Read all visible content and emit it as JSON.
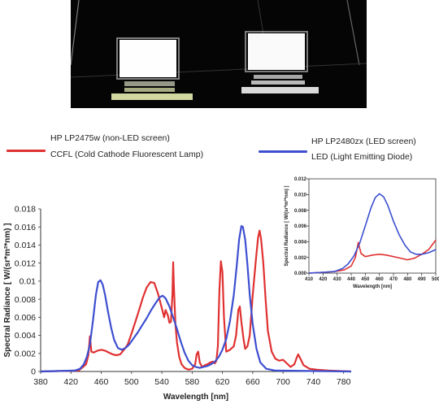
{
  "legend": {
    "ccfl": {
      "name": "HP LP2475w (non-LED screen)",
      "type": "CCFL (Cold Cathode Fluorescent Lamp)",
      "color": "#e03131"
    },
    "led": {
      "name": "HP LP2480zx (LED screen)",
      "type": "LED (Light Emitting Diode)",
      "color": "#3d4fd0"
    }
  },
  "chart_data": [
    {
      "type": "line",
      "title": "",
      "xlabel": "Wavelength [nm]",
      "ylabel": "Spectral Radiance [ W/(sr*m²*nm) ]",
      "xlim": [
        380,
        790
      ],
      "ylim": [
        0,
        0.018
      ],
      "xticks": [
        "380",
        "420",
        "460",
        "500",
        "540",
        "580",
        "620",
        "660",
        "700",
        "740",
        "780"
      ],
      "yticks": [
        "0",
        "0.002",
        "0.004",
        "0.006",
        "0.008",
        "0.01",
        "0.012",
        "0.014",
        "0.016",
        "0.018"
      ],
      "grid": false,
      "series": [
        {
          "name": "HP LP2475w (non-LED screen)",
          "color": "#e03131",
          "points": [
            [
              380,
              0
            ],
            [
              430,
              0.0001
            ],
            [
              436,
              0.0005
            ],
            [
              440,
              0.0008
            ],
            [
              443,
              0.0018
            ],
            [
              445,
              0.0039
            ],
            [
              447,
              0.0022
            ],
            [
              450,
              0.0021
            ],
            [
              455,
              0.0023
            ],
            [
              460,
              0.0024
            ],
            [
              465,
              0.0023
            ],
            [
              470,
              0.0021
            ],
            [
              475,
              0.0019
            ],
            [
              480,
              0.0018
            ],
            [
              485,
              0.0019
            ],
            [
              490,
              0.0024
            ],
            [
              495,
              0.003
            ],
            [
              500,
              0.0042
            ],
            [
              505,
              0.0055
            ],
            [
              510,
              0.0068
            ],
            [
              515,
              0.0082
            ],
            [
              520,
              0.0093
            ],
            [
              525,
              0.0099
            ],
            [
              530,
              0.0098
            ],
            [
              535,
              0.0086
            ],
            [
              540,
              0.007
            ],
            [
              543,
              0.006
            ],
            [
              545,
              0.0068
            ],
            [
              548,
              0.0062
            ],
            [
              550,
              0.0054
            ],
            [
              552,
              0.0055
            ],
            [
              554,
              0.0085
            ],
            [
              555,
              0.0121
            ],
            [
              556,
              0.0092
            ],
            [
              558,
              0.0052
            ],
            [
              560,
              0.0032
            ],
            [
              563,
              0.0016
            ],
            [
              566,
              0.0008
            ],
            [
              570,
              0.0004
            ],
            [
              575,
              0.0002
            ],
            [
              580,
              0.0003
            ],
            [
              584,
              0.0008
            ],
            [
              586,
              0.0019
            ],
            [
              588,
              0.0022
            ],
            [
              590,
              0.001
            ],
            [
              593,
              0.0005
            ],
            [
              597,
              0.0007
            ],
            [
              600,
              0.0008
            ],
            [
              604,
              0.001
            ],
            [
              607,
              0.0011
            ],
            [
              610,
              0.0009
            ],
            [
              612,
              0.0012
            ],
            [
              614,
              0.0028
            ],
            [
              616,
              0.009
            ],
            [
              618,
              0.0122
            ],
            [
              620,
              0.011
            ],
            [
              622,
              0.006
            ],
            [
              625,
              0.0022
            ],
            [
              630,
              0.0024
            ],
            [
              635,
              0.0028
            ],
            [
              638,
              0.004
            ],
            [
              641,
              0.0068
            ],
            [
              643,
              0.0072
            ],
            [
              645,
              0.0055
            ],
            [
              648,
              0.0035
            ],
            [
              650,
              0.0025
            ],
            [
              653,
              0.0028
            ],
            [
              656,
              0.004
            ],
            [
              660,
              0.0085
            ],
            [
              664,
              0.0122
            ],
            [
              667,
              0.0148
            ],
            [
              669,
              0.0156
            ],
            [
              671,
              0.0147
            ],
            [
              674,
              0.012
            ],
            [
              677,
              0.008
            ],
            [
              680,
              0.0045
            ],
            [
              685,
              0.0022
            ],
            [
              690,
              0.0014
            ],
            [
              695,
              0.0012
            ],
            [
              700,
              0.0013
            ],
            [
              705,
              0.0009
            ],
            [
              710,
              0.0005
            ],
            [
              715,
              0.0008
            ],
            [
              718,
              0.0015
            ],
            [
              720,
              0.0019
            ],
            [
              723,
              0.0014
            ],
            [
              727,
              0.0007
            ],
            [
              735,
              0.0003
            ],
            [
              745,
              0.0002
            ],
            [
              760,
              0.0001
            ],
            [
              790,
              0
            ]
          ]
        },
        {
          "name": "HP LP2480zx (LED screen)",
          "color": "#3d4fd0",
          "points": [
            [
              380,
              0
            ],
            [
              425,
              0.0001
            ],
            [
              432,
              0.0003
            ],
            [
              437,
              0.0008
            ],
            [
              441,
              0.0016
            ],
            [
              445,
              0.003
            ],
            [
              449,
              0.0056
            ],
            [
              453,
              0.0085
            ],
            [
              456,
              0.0099
            ],
            [
              459,
              0.0101
            ],
            [
              462,
              0.0096
            ],
            [
              465,
              0.0085
            ],
            [
              469,
              0.0066
            ],
            [
              473,
              0.0049
            ],
            [
              477,
              0.0035
            ],
            [
              482,
              0.0026
            ],
            [
              487,
              0.0024
            ],
            [
              492,
              0.0026
            ],
            [
              497,
              0.003
            ],
            [
              502,
              0.0036
            ],
            [
              508,
              0.0043
            ],
            [
              514,
              0.0051
            ],
            [
              520,
              0.0059
            ],
            [
              526,
              0.0068
            ],
            [
              532,
              0.0076
            ],
            [
              537,
              0.0082
            ],
            [
              541,
              0.0084
            ],
            [
              545,
              0.0081
            ],
            [
              550,
              0.0072
            ],
            [
              555,
              0.006
            ],
            [
              560,
              0.0047
            ],
            [
              565,
              0.0033
            ],
            [
              570,
              0.0021
            ],
            [
              575,
              0.0012
            ],
            [
              580,
              0.0007
            ],
            [
              585,
              0.0005
            ],
            [
              590,
              0.0004
            ],
            [
              595,
              0.0005
            ],
            [
              600,
              0.0006
            ],
            [
              605,
              0.0008
            ],
            [
              610,
              0.0011
            ],
            [
              615,
              0.0016
            ],
            [
              620,
              0.0024
            ],
            [
              625,
              0.0036
            ],
            [
              630,
              0.0056
            ],
            [
              635,
              0.0085
            ],
            [
              639,
              0.0118
            ],
            [
              642,
              0.0146
            ],
            [
              645,
              0.0161
            ],
            [
              647,
              0.016
            ],
            [
              650,
              0.0146
            ],
            [
              653,
              0.0118
            ],
            [
              656,
              0.0085
            ],
            [
              660,
              0.0052
            ],
            [
              665,
              0.0025
            ],
            [
              670,
              0.001
            ],
            [
              678,
              0.0003
            ],
            [
              690,
              0.0001
            ],
            [
              790,
              0
            ]
          ]
        }
      ]
    },
    {
      "type": "line",
      "title": "",
      "xlabel": "Wavelength [nm]",
      "ylabel": "Spectral Radiance [ W/(sr*m²*nm) ]",
      "xlim": [
        410,
        500
      ],
      "ylim": [
        0,
        0.012
      ],
      "xticks": [
        "410",
        "420",
        "430",
        "440",
        "450",
        "460",
        "470",
        "480",
        "490",
        "500"
      ],
      "yticks": [
        "0.000",
        "0.002",
        "0.004",
        "0.006",
        "0.008",
        "0.010",
        "0.012"
      ],
      "grid": false,
      "series": [
        {
          "name": "HP LP2475w (non-LED screen)",
          "color": "#e03131",
          "points": [
            [
              410,
              0
            ],
            [
              420,
              0.0001
            ],
            [
              428,
              0.0002
            ],
            [
              435,
              0.0004
            ],
            [
              440,
              0.0009
            ],
            [
              443,
              0.002
            ],
            [
              445,
              0.0039
            ],
            [
              447,
              0.0025
            ],
            [
              450,
              0.0021
            ],
            [
              455,
              0.0023
            ],
            [
              460,
              0.0024
            ],
            [
              465,
              0.0023
            ],
            [
              470,
              0.0021
            ],
            [
              475,
              0.0019
            ],
            [
              480,
              0.0017
            ],
            [
              485,
              0.0019
            ],
            [
              490,
              0.0024
            ],
            [
              495,
              0.003
            ],
            [
              500,
              0.0042
            ]
          ]
        },
        {
          "name": "HP LP2480zx (LED screen)",
          "color": "#3d4fd0",
          "points": [
            [
              410,
              0
            ],
            [
              420,
              0.0001
            ],
            [
              428,
              0.0002
            ],
            [
              434,
              0.0006
            ],
            [
              438,
              0.0012
            ],
            [
              442,
              0.0022
            ],
            [
              446,
              0.0038
            ],
            [
              450,
              0.006
            ],
            [
              454,
              0.0083
            ],
            [
              457,
              0.0096
            ],
            [
              460,
              0.0101
            ],
            [
              463,
              0.0097
            ],
            [
              466,
              0.0086
            ],
            [
              470,
              0.0066
            ],
            [
              474,
              0.0049
            ],
            [
              478,
              0.0036
            ],
            [
              482,
              0.0027
            ],
            [
              486,
              0.0024
            ],
            [
              490,
              0.0024
            ],
            [
              495,
              0.0026
            ],
            [
              500,
              0.003
            ]
          ]
        }
      ]
    }
  ]
}
